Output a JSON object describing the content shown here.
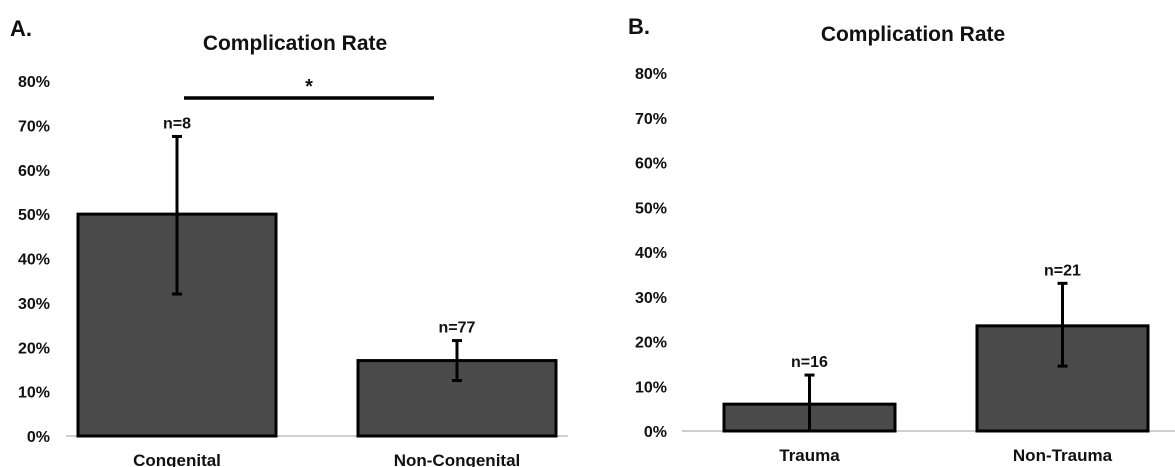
{
  "chart_data": [
    {
      "panel": "A.",
      "type": "bar",
      "title": "Complication Rate",
      "categories": [
        "Congenital",
        "Non-Congenital"
      ],
      "values": [
        50,
        17
      ],
      "error_low": [
        32,
        12.5
      ],
      "error_high": [
        67.5,
        21.5
      ],
      "n_labels": [
        "n=8",
        "n=77"
      ],
      "yticks": [
        "0%",
        "10%",
        "20%",
        "30%",
        "40%",
        "50%",
        "60%",
        "70%",
        "80%"
      ],
      "ylim": [
        0,
        80
      ],
      "significance": "*",
      "bar_color": "#4a4a4a"
    },
    {
      "panel": "B.",
      "type": "bar",
      "title": "Complication Rate",
      "categories": [
        "Trauma",
        "Non-Trauma"
      ],
      "values": [
        6,
        23.5
      ],
      "error_low": [
        0,
        14.5
      ],
      "error_high": [
        12.5,
        33
      ],
      "n_labels": [
        "n=16",
        "n=21"
      ],
      "yticks": [
        "0%",
        "10%",
        "20%",
        "30%",
        "40%",
        "50%",
        "60%",
        "70%",
        "80%"
      ],
      "ylim": [
        0,
        80
      ],
      "bar_color": "#4a4a4a"
    }
  ]
}
